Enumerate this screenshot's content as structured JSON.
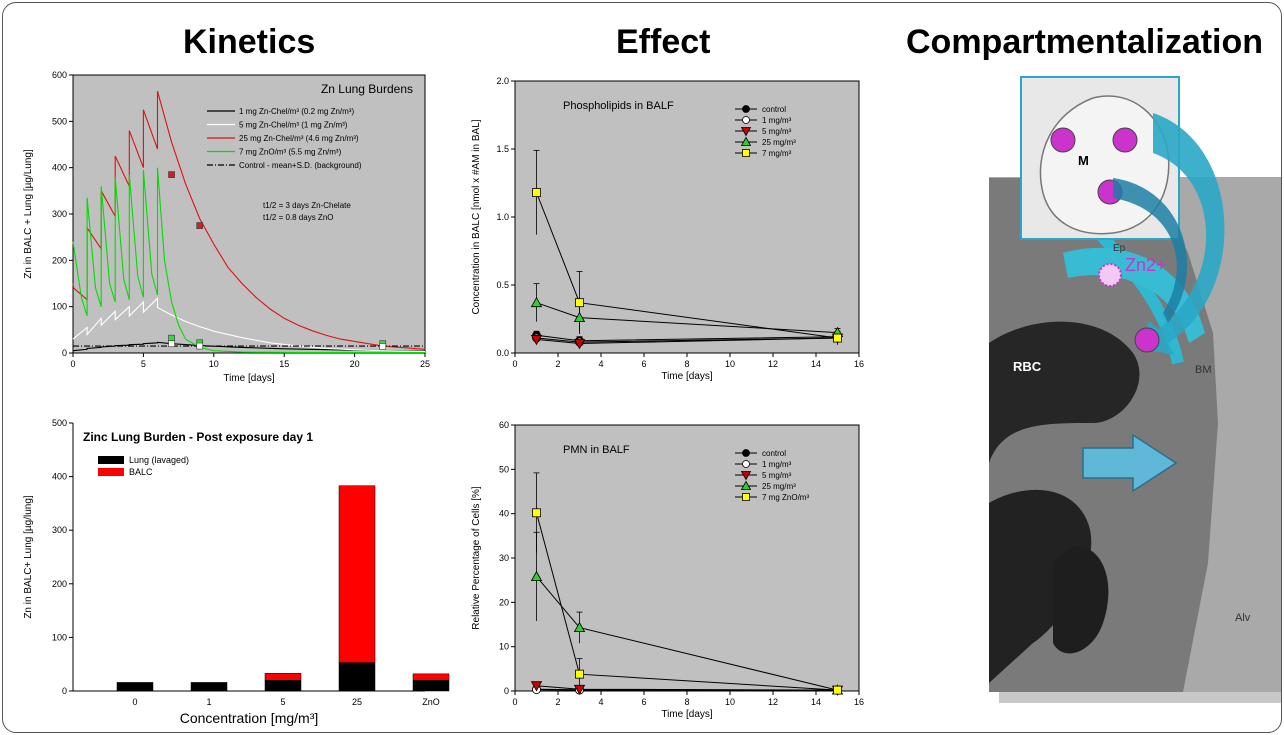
{
  "titles": {
    "kinetics": "Kinetics",
    "effect": "Effect",
    "compartmentalization": "Compartmentalization"
  },
  "micrograph": {
    "labels": [
      "M",
      "Zn2+",
      "Ep",
      "RBC",
      "BM",
      "Alv"
    ],
    "colors": {
      "cell": "#e8e8e8",
      "dot": "#cc33cc",
      "arrow": "#2aa7c6",
      "zn_text": "#cc33cc"
    }
  },
  "chart_data": [
    {
      "id": "kinetics_line",
      "type": "line",
      "title": "Zn Lung Burdens",
      "xlabel": "Time [days]",
      "ylabel": "Zn in BALC + Lung [µg/Lung]",
      "xlim": [
        0,
        25
      ],
      "ylim": [
        0,
        600
      ],
      "xticks": [
        0,
        5,
        10,
        15,
        20,
        25
      ],
      "yticks": [
        0,
        100,
        200,
        300,
        400,
        500,
        600
      ],
      "background": "#c0c0c0",
      "annotations": [
        "t1/2 = 3 days Zn-Chelate",
        "t1/2 = 0.8 days ZnO"
      ],
      "series": [
        {
          "name": "1 mg Zn-Chel/m³ (0.2 mg Zn/m³)",
          "color": "#000000",
          "style": "solid",
          "x": [
            0,
            1,
            1,
            2,
            2,
            3,
            3,
            4,
            4,
            5,
            5,
            6,
            6,
            7,
            9,
            12,
            15,
            20,
            25
          ],
          "y": [
            5,
            8,
            10,
            12,
            13,
            15,
            16,
            17,
            18,
            19,
            20,
            22,
            23,
            20,
            16,
            12,
            9,
            6,
            4
          ]
        },
        {
          "name": "5 mg Zn-Chel/m³ (1 mg Zn/m³)",
          "color": "#ffffff",
          "style": "solid",
          "x": [
            0,
            1,
            1,
            2,
            2,
            3,
            3,
            4,
            4,
            5,
            5,
            6,
            6,
            7,
            8,
            9,
            10,
            12,
            14,
            16,
            18,
            20,
            22,
            25
          ],
          "y": [
            30,
            55,
            40,
            75,
            60,
            90,
            72,
            100,
            80,
            110,
            88,
            118,
            98,
            82,
            68,
            57,
            47,
            33,
            22,
            15,
            10,
            7,
            5,
            3
          ]
        },
        {
          "name": "25 mg Zn-Chel/m³ (4.6 mg Zn/m³)",
          "color": "#e01010",
          "style": "solid",
          "x": [
            0,
            0.05,
            1,
            1,
            2,
            2,
            3,
            3,
            4,
            4,
            5,
            5,
            6,
            6,
            7,
            8,
            9,
            10,
            11,
            12,
            13,
            14,
            15,
            16,
            17,
            18,
            19,
            20,
            22,
            25
          ],
          "y": [
            150,
            140,
            115,
            270,
            225,
            350,
            295,
            425,
            360,
            480,
            400,
            525,
            440,
            565,
            455,
            365,
            290,
            235,
            185,
            150,
            120,
            95,
            75,
            60,
            48,
            38,
            30,
            25,
            15,
            8
          ]
        },
        {
          "name": "7 mg ZnO/m³ (5.5 mg Zn/m³)",
          "color": "#00dd00",
          "style": "solid",
          "x": [
            0,
            0.6,
            1,
            1,
            1.6,
            2,
            2,
            2.6,
            3,
            3,
            3.6,
            4,
            4,
            4.6,
            5,
            5,
            5.6,
            6,
            6,
            6.5,
            7,
            7.5,
            8,
            9,
            10,
            12,
            16,
            22,
            25
          ],
          "y": [
            240,
            120,
            80,
            335,
            140,
            100,
            360,
            150,
            110,
            380,
            160,
            115,
            385,
            165,
            120,
            395,
            170,
            125,
            400,
            200,
            110,
            60,
            30,
            12,
            5,
            2,
            1,
            1,
            1
          ]
        },
        {
          "name": "Control - mean+S.D. (background)",
          "color": "#000000",
          "style": "dashdot",
          "x": [
            0,
            25
          ],
          "y": [
            15,
            15
          ]
        }
      ],
      "points": [
        {
          "series": "25 mg Zn-Chel/m³ (4.6 mg Zn/m³)",
          "x": [
            7,
            9
          ],
          "y": [
            385,
            275
          ],
          "color": "#cc2222"
        },
        {
          "series": "7 mg ZnO/m³ (5.5 mg Zn/m³)",
          "x": [
            7,
            9,
            22
          ],
          "y": [
            32,
            22,
            20
          ],
          "color": "#33dd33"
        },
        {
          "series": "5 mg Zn-Chel/m³ (1 mg Zn/m³)",
          "x": [
            7,
            9,
            22
          ],
          "y": [
            20,
            15,
            14
          ],
          "color": "#ffffff"
        }
      ]
    },
    {
      "id": "zinc_burden_bar",
      "type": "bar",
      "title": "Zinc Lung Burden - Post exposure day 1",
      "xlabel": "Concentration [mg/m³]",
      "ylabel": "Zn in BALC+ Lung [µg/lung]",
      "ylim": [
        0,
        500
      ],
      "yticks": [
        0,
        100,
        200,
        300,
        400,
        500
      ],
      "categories": [
        "0",
        "1",
        "5",
        "25",
        "ZnO"
      ],
      "stacked": true,
      "series": [
        {
          "name": "Lung (lavaged)",
          "color": "#000000",
          "values": [
            16,
            16,
            20,
            53,
            20
          ]
        },
        {
          "name": "BALC",
          "color": "#ff0000",
          "values": [
            0,
            0,
            13,
            330,
            12
          ]
        }
      ]
    },
    {
      "id": "phospholipids",
      "type": "line",
      "title": "Phospholipids in BALF",
      "xlabel": "Time [days]",
      "ylabel": "Concentration in BALC [nmol x #AM in BAL]",
      "xlim": [
        0,
        16
      ],
      "ylim": [
        0,
        2.0
      ],
      "xticks": [
        0,
        2,
        4,
        6,
        8,
        10,
        12,
        14,
        16
      ],
      "yticks": [
        0.0,
        0.5,
        1.0,
        1.5,
        2.0
      ],
      "ytick_labels": [
        "0.0",
        "0.5",
        "1.0",
        "1.5",
        "2.0"
      ],
      "background": "#c0c0c0",
      "x": [
        1,
        3,
        15
      ],
      "series": [
        {
          "name": "control",
          "marker": "circle",
          "color": "#000000",
          "values": [
            0.13,
            0.09,
            0.12
          ],
          "err": [
            0.03,
            0.03,
            0.02
          ]
        },
        {
          "name": "1 mg/m³",
          "marker": "circle",
          "color": "#ffffff",
          "values": [
            0.11,
            0.08,
            0.11
          ],
          "err": [
            0.02,
            0.02,
            0.02
          ]
        },
        {
          "name": "5 mg/m³",
          "marker": "triangle-down",
          "color": "#cc0000",
          "values": [
            0.1,
            0.07,
            0.11
          ],
          "err": [
            0.02,
            0.02,
            0.02
          ]
        },
        {
          "name": "25 mg/m³",
          "marker": "triangle-up",
          "color": "#33cc33",
          "values": [
            0.37,
            0.26,
            0.15
          ],
          "err": [
            0.14,
            0.1,
            0.03
          ]
        },
        {
          "name": "7 mg/m³",
          "marker": "square",
          "color": "#ffff00",
          "values": [
            1.18,
            0.37,
            0.11
          ],
          "err": [
            0.31,
            0.23,
            0.05
          ]
        }
      ]
    },
    {
      "id": "pmn",
      "type": "line",
      "title": "PMN in BALF",
      "xlabel": "Time [days]",
      "ylabel": "Relative Percentage of Cells [%]",
      "xlim": [
        0,
        16
      ],
      "ylim": [
        0,
        60
      ],
      "xticks": [
        0,
        2,
        4,
        6,
        8,
        10,
        12,
        14,
        16
      ],
      "yticks": [
        0,
        10,
        20,
        30,
        40,
        50,
        60
      ],
      "background": "#c0c0c0",
      "x": [
        1,
        3,
        15
      ],
      "series": [
        {
          "name": "control",
          "marker": "circle",
          "color": "#000000",
          "values": [
            0.4,
            0.3,
            0.2
          ],
          "err": [
            0.3,
            0.2,
            0.1
          ]
        },
        {
          "name": "1 mg/m³",
          "marker": "circle",
          "color": "#ffffff",
          "values": [
            0.3,
            0.2,
            0.2
          ],
          "err": [
            0.2,
            0.2,
            0.1
          ]
        },
        {
          "name": "5 mg/m³",
          "marker": "triangle-down",
          "color": "#cc0000",
          "values": [
            1.2,
            0.4,
            0.2
          ],
          "err": [
            0.8,
            0.3,
            0.1
          ]
        },
        {
          "name": "25 mg/m³",
          "marker": "triangle-up",
          "color": "#33cc33",
          "values": [
            25.8,
            14.3,
            0.2
          ],
          "err": [
            10,
            3.5,
            0.3
          ]
        },
        {
          "name": "7 mg ZnO/m³",
          "marker": "square",
          "color": "#ffff00",
          "values": [
            40.2,
            3.8,
            0.2
          ],
          "err": [
            9,
            3.5,
            0.3
          ]
        }
      ]
    }
  ]
}
